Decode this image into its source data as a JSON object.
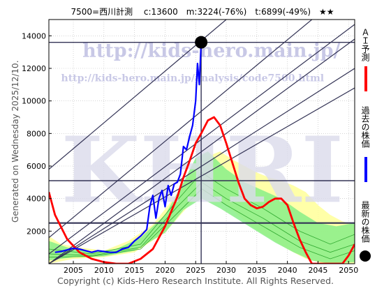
{
  "header": {
    "title": "7500=西川計測　 c:13600　m:3224(-76%)　t:6899(-49%)　★★"
  },
  "side": {
    "generated": "Generated on Wednesday 2025/12/10."
  },
  "footer": {
    "copyright": "Copyright (c) Kids-Hero Research Institute. All Rights Reserved."
  },
  "watermark": {
    "url_main": "http://kids-hero.main.jp/",
    "url_analysis": "http://kids-hero.main.jp/analysis/code7500.html",
    "big": "KHRI"
  },
  "legend": {
    "ai_label": "ＡＩ予測",
    "past_label": "過去の株価",
    "latest_label": "最新の株価"
  },
  "colors": {
    "ai": "#ff0000",
    "past": "#0000ff",
    "latest": "#000000",
    "band_yellow": "#ffff99",
    "band_green": "#88ee88",
    "dark_line": "#333355"
  },
  "chart_data": {
    "type": "line",
    "xlim": [
      2001,
      2051
    ],
    "ylim": [
      0,
      15000
    ],
    "x_ticks": [
      2005,
      2010,
      2015,
      2020,
      2025,
      2030,
      2035,
      2040,
      2045,
      2050
    ],
    "y_ticks": [
      0,
      2000,
      4000,
      6000,
      8000,
      10000,
      12000,
      14000
    ],
    "grid": true,
    "current": {
      "x": 2025.9,
      "y": 13600
    },
    "h_levels": [
      13600,
      5100,
      2500
    ],
    "series": [
      {
        "name": "過去の株価",
        "x": [
          2002,
          2003,
          2004,
          2005,
          2006,
          2007,
          2008,
          2009,
          2010,
          2011,
          2012,
          2013,
          2014,
          2015,
          2016,
          2017,
          2017.5,
          2018,
          2018.5,
          2019,
          2019.5,
          2020,
          2020.5,
          2021,
          2021.5,
          2022,
          2022.5,
          2023,
          2023.5,
          2024,
          2024.5,
          2025,
          2025.3,
          2025.6,
          2025.9
        ],
        "y": [
          700,
          750,
          850,
          950,
          900,
          800,
          700,
          800,
          750,
          700,
          700,
          900,
          1000,
          1400,
          1700,
          2100,
          3500,
          4200,
          2800,
          4000,
          4500,
          3500,
          4800,
          4200,
          4900,
          5000,
          5500,
          7200,
          7000,
          7800,
          8500,
          10000,
          12300,
          11000,
          13600
        ]
      },
      {
        "name": "ＡＩ予測",
        "x": [
          2001,
          2002,
          2004,
          2006,
          2008,
          2010,
          2012,
          2014,
          2016,
          2018,
          2020,
          2022,
          2023,
          2024,
          2025,
          2025.9,
          2027,
          2028,
          2029,
          2030,
          2031,
          2032,
          2033,
          2034,
          2035,
          2036,
          2037,
          2038,
          2039,
          2040,
          2041,
          2042,
          2043,
          2044,
          2045,
          2046,
          2047,
          2048,
          2049,
          2050,
          2051
        ],
        "y": [
          4400,
          3000,
          1500,
          700,
          300,
          100,
          0,
          0,
          300,
          900,
          2300,
          4100,
          5300,
          6300,
          7400,
          8000,
          8800,
          9000,
          8500,
          7400,
          6200,
          5000,
          4000,
          3600,
          3400,
          3500,
          3800,
          4000,
          4000,
          3600,
          2500,
          1500,
          700,
          0,
          0,
          0,
          0,
          0,
          0,
          500,
          1200
        ]
      },
      {
        "name": "最新の株価",
        "x": [
          2025.9
        ],
        "y": [
          13600
        ]
      }
    ]
  }
}
